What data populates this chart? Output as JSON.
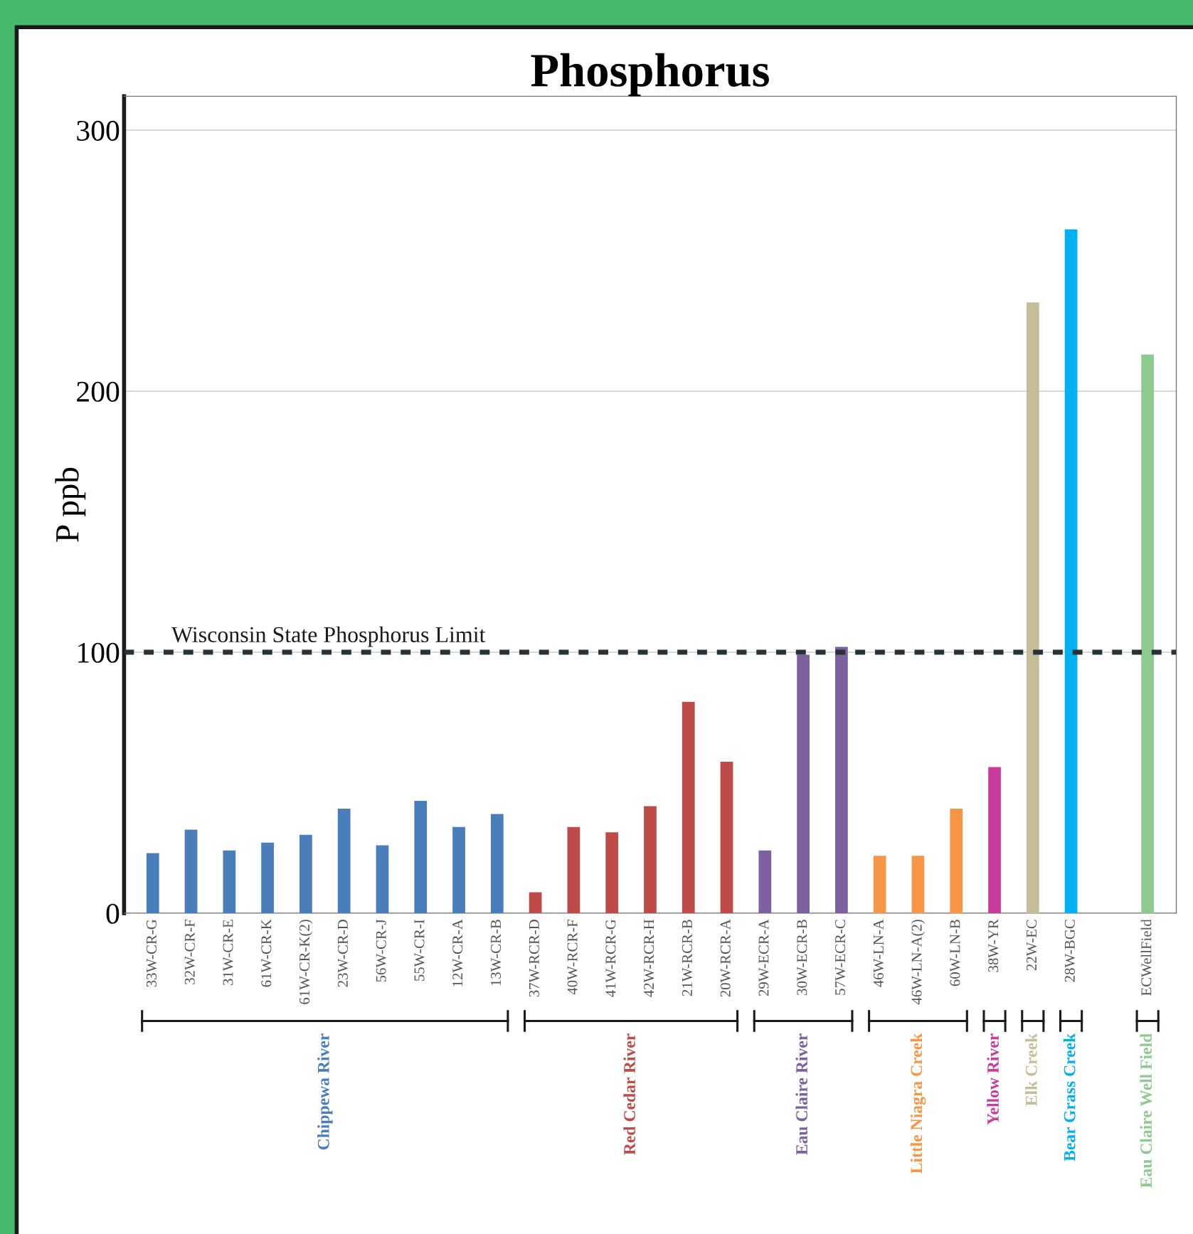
{
  "chart_data": {
    "type": "bar",
    "title": "Phosphorus",
    "ylabel": "P ppb",
    "categories": [
      "33W-CR-G",
      "32W-CR-F",
      "31W-CR-E",
      "61W-CR-K",
      "61W-CR-K(2)",
      "23W-CR-D",
      "56W-CR-J",
      "55W-CR-I",
      "12W-CR-A",
      "13W-CR-B",
      "37W-RCR-D",
      "40W-RCR-F",
      "41W-RCR-G",
      "42W-RCR-H",
      "21W-RCR-B",
      "20W-RCR-A",
      "29W-ECR-A",
      "30W-ECR-B",
      "57W-ECR-C",
      "46W-LN-A",
      "46W-LN-A(2)",
      "60W-LN-B",
      "38W-YR",
      "22W-EC",
      "28W-BGC",
      null,
      "ECWellField"
    ],
    "series": [
      {
        "name": "Chippewa River",
        "color": "#4a7ebb",
        "values": [
          23,
          32,
          24,
          27,
          30,
          40,
          26,
          43,
          33,
          38,
          null,
          null,
          null,
          null,
          null,
          null,
          null,
          null,
          null,
          null,
          null,
          null,
          null,
          null,
          null,
          null,
          null
        ]
      },
      {
        "name": "Red Cedar River",
        "color": "#be4b48",
        "values": [
          null,
          null,
          null,
          null,
          null,
          null,
          null,
          null,
          null,
          null,
          8,
          33,
          31,
          41,
          81,
          58,
          null,
          null,
          null,
          null,
          null,
          null,
          null,
          null,
          null,
          null,
          null
        ]
      },
      {
        "name": "Eau Claire River",
        "color": "#7d60a0",
        "values": [
          null,
          null,
          null,
          null,
          null,
          null,
          null,
          null,
          null,
          null,
          null,
          null,
          null,
          null,
          null,
          null,
          24,
          99,
          102,
          null,
          null,
          null,
          null,
          null,
          null,
          null,
          null
        ]
      },
      {
        "name": "Little Niagra Creek",
        "color": "#f79646",
        "values": [
          null,
          null,
          null,
          null,
          null,
          null,
          null,
          null,
          null,
          null,
          null,
          null,
          null,
          null,
          null,
          null,
          null,
          null,
          null,
          22,
          22,
          40,
          null,
          null,
          null,
          null,
          null
        ]
      },
      {
        "name": "Yellow River",
        "color": "#c83c9c",
        "values": [
          null,
          null,
          null,
          null,
          null,
          null,
          null,
          null,
          null,
          null,
          null,
          null,
          null,
          null,
          null,
          null,
          null,
          null,
          null,
          null,
          null,
          null,
          56,
          null,
          null,
          null,
          null
        ]
      },
      {
        "name": "Elk Creek",
        "color": "#c4bd97",
        "values": [
          null,
          null,
          null,
          null,
          null,
          null,
          null,
          null,
          null,
          null,
          null,
          null,
          null,
          null,
          null,
          null,
          null,
          null,
          null,
          null,
          null,
          null,
          null,
          234,
          null,
          null,
          null
        ]
      },
      {
        "name": "Bear Grass Creek",
        "color": "#00b0f0",
        "values": [
          null,
          null,
          null,
          null,
          null,
          null,
          null,
          null,
          null,
          null,
          null,
          null,
          null,
          null,
          null,
          null,
          null,
          null,
          null,
          null,
          null,
          null,
          null,
          null,
          262,
          null,
          null
        ]
      },
      {
        "name": "Eau Claire Well Field",
        "color": "#8ec990",
        "values": [
          null,
          null,
          null,
          null,
          null,
          null,
          null,
          null,
          null,
          null,
          null,
          null,
          null,
          null,
          null,
          null,
          null,
          null,
          null,
          null,
          null,
          null,
          null,
          null,
          null,
          null,
          214
        ]
      }
    ],
    "ylim": [
      0,
      313
    ],
    "yticks": [
      0,
      100,
      200,
      300
    ],
    "grid": "y",
    "ref_lines": [
      {
        "axis": "y",
        "value": 100,
        "label": "Wisconsin State Phosphorus Limit",
        "color": "#263238",
        "line_style": "dashed"
      }
    ]
  }
}
